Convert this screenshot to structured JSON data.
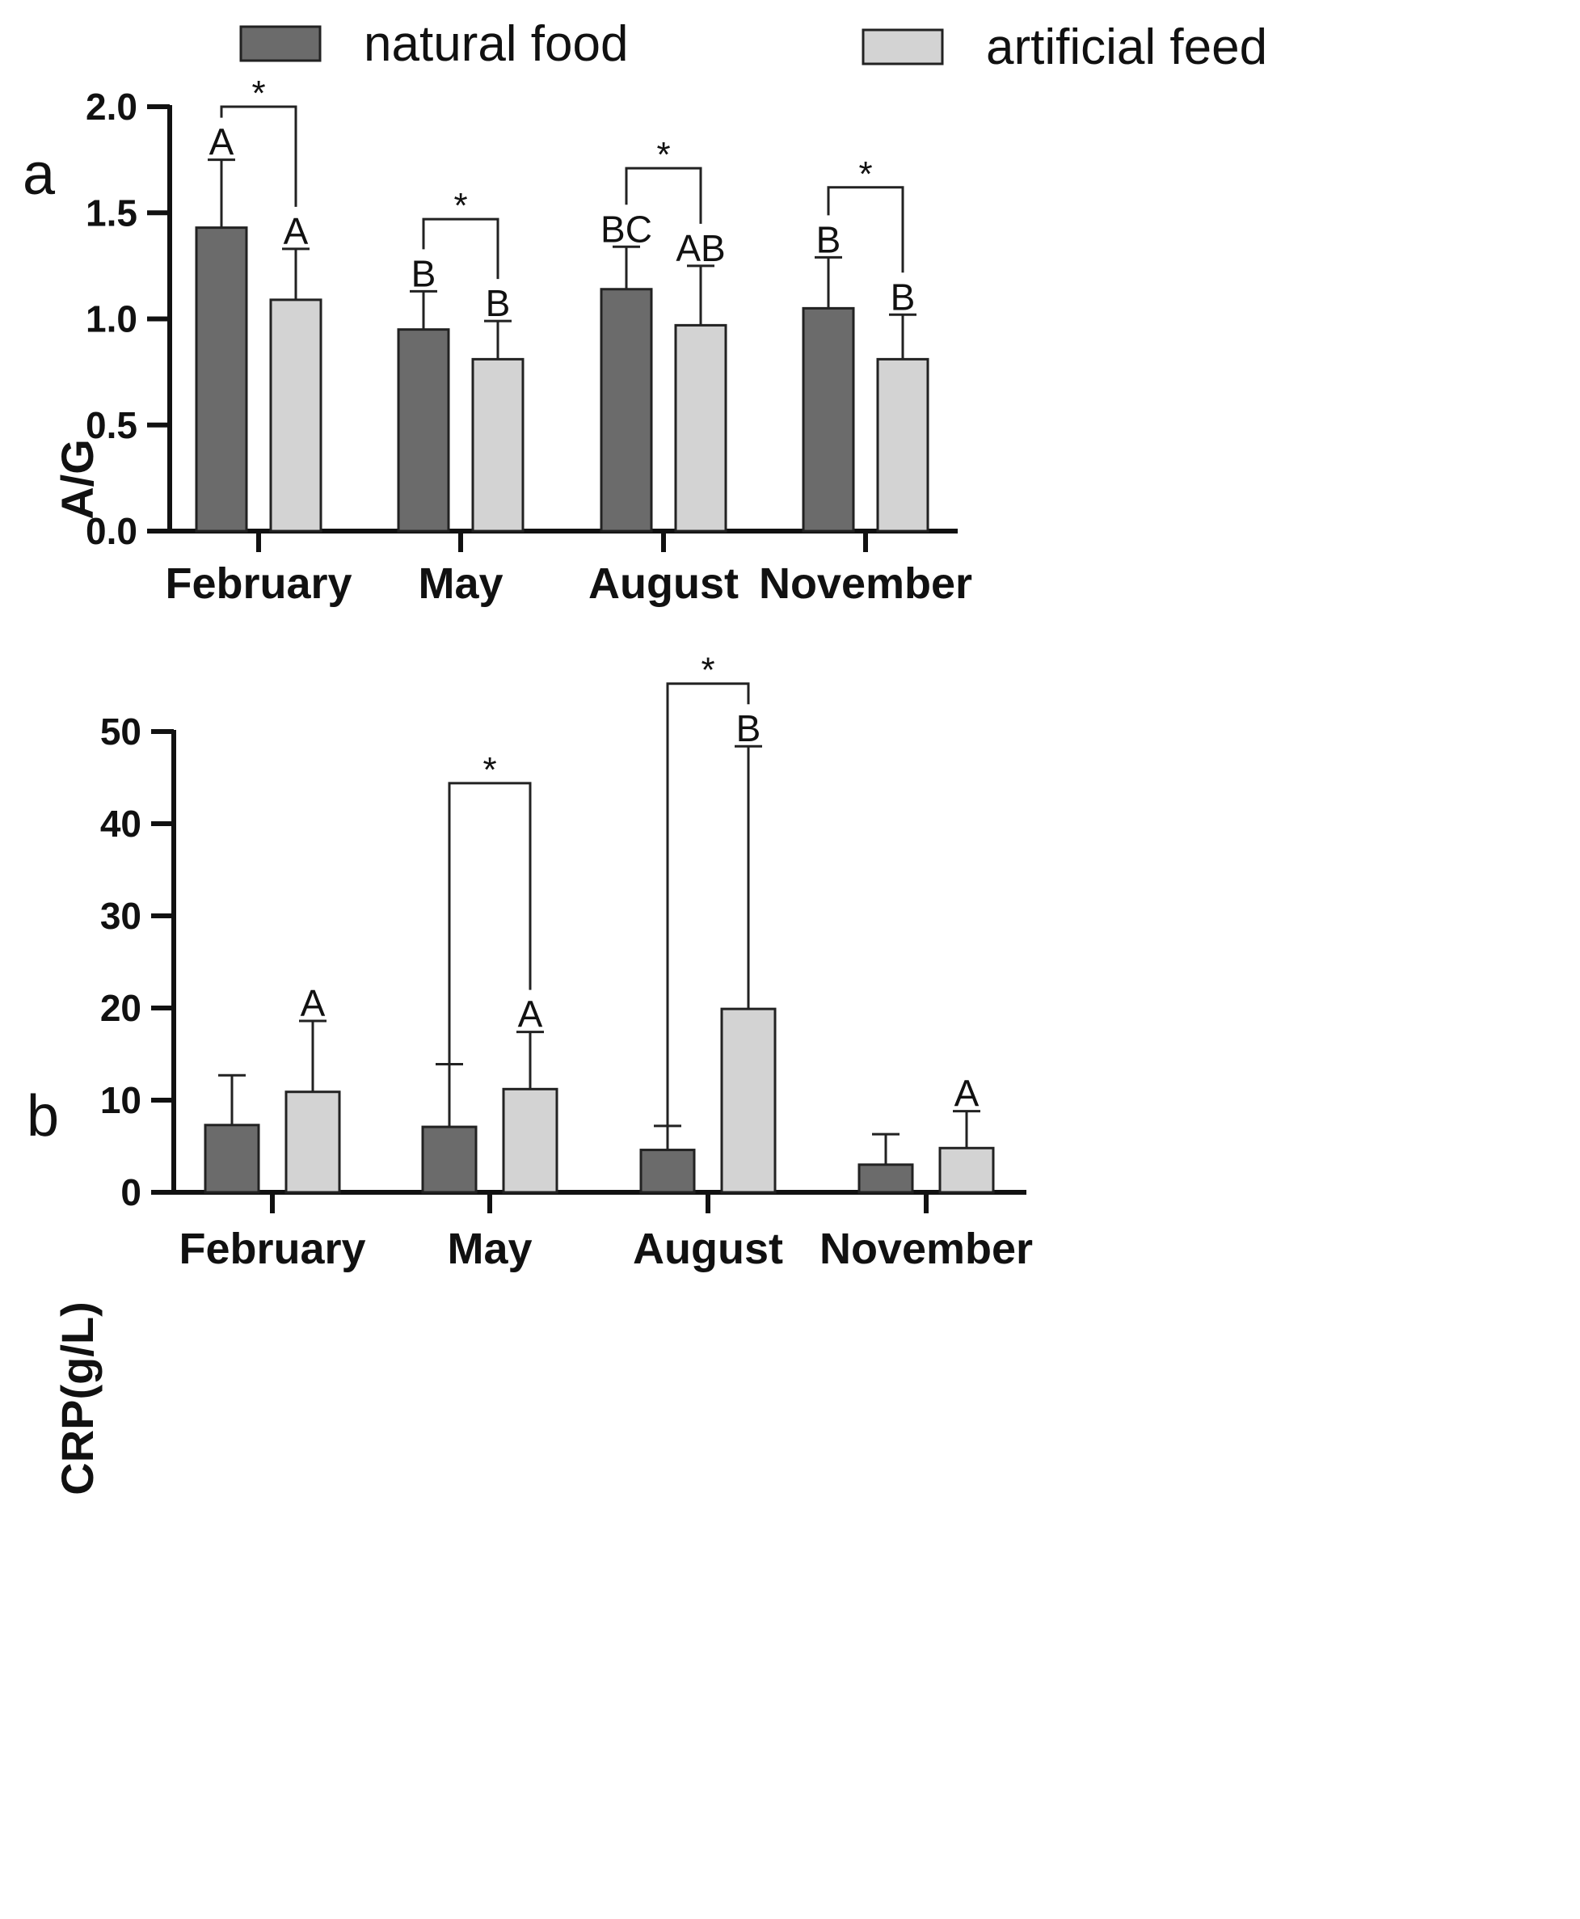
{
  "legend": {
    "items": [
      {
        "label": "natural food",
        "color": "#6b6b6b"
      },
      {
        "label": "artificial feed",
        "color": "#d3d3d3"
      }
    ]
  },
  "chart_data": [
    {
      "type": "bar",
      "panel_label": "a",
      "ylabel": "A/G",
      "ylim": [
        0,
        2.0
      ],
      "yticks": [
        0.0,
        0.5,
        1.0,
        1.5,
        2.0
      ],
      "ytick_labels": [
        "0.0",
        "0.5",
        "1.0",
        "1.5",
        "2.0"
      ],
      "categories": [
        "February",
        "May",
        "August",
        "November"
      ],
      "series": [
        {
          "name": "natural food",
          "values": [
            1.43,
            0.95,
            1.14,
            1.05
          ],
          "errors": [
            0.32,
            0.18,
            0.2,
            0.24
          ],
          "letters": [
            "A",
            "B",
            "BC",
            "B"
          ]
        },
        {
          "name": "artificial feed",
          "values": [
            1.09,
            0.81,
            0.97,
            0.81
          ],
          "errors": [
            0.24,
            0.18,
            0.28,
            0.21
          ],
          "letters": [
            "A",
            "B",
            "AB",
            "B"
          ]
        }
      ],
      "significance": [
        {
          "category": 0,
          "label": "*",
          "y": 2.0
        },
        {
          "category": 1,
          "label": "*",
          "y": 1.47
        },
        {
          "category": 2,
          "label": "*",
          "y": 1.71
        },
        {
          "category": 3,
          "label": "*",
          "y": 1.62
        }
      ]
    },
    {
      "type": "bar",
      "panel_label": "b",
      "ylabel": "CRP(g/L)",
      "ylim": [
        0,
        50
      ],
      "yticks": [
        0,
        10,
        20,
        30,
        40,
        50
      ],
      "ytick_labels": [
        "0",
        "10",
        "20",
        "30",
        "40",
        "50"
      ],
      "categories": [
        "February",
        "May",
        "August",
        "November"
      ],
      "series": [
        {
          "name": "natural food",
          "values": [
            7.3,
            7.1,
            4.6,
            3.0
          ],
          "errors": [
            5.4,
            6.8,
            2.6,
            3.3
          ],
          "letters": [
            "",
            "",
            "",
            ""
          ]
        },
        {
          "name": "artificial feed",
          "values": [
            10.9,
            11.2,
            19.9,
            4.8
          ],
          "errors": [
            7.7,
            6.2,
            28.5,
            4.0
          ],
          "letters": [
            "A",
            "A",
            "B",
            "A"
          ]
        }
      ],
      "significance": [
        {
          "category": 1,
          "label": "*",
          "y": 44.4
        },
        {
          "category": 2,
          "label": "*",
          "y": 55.2
        }
      ]
    }
  ]
}
